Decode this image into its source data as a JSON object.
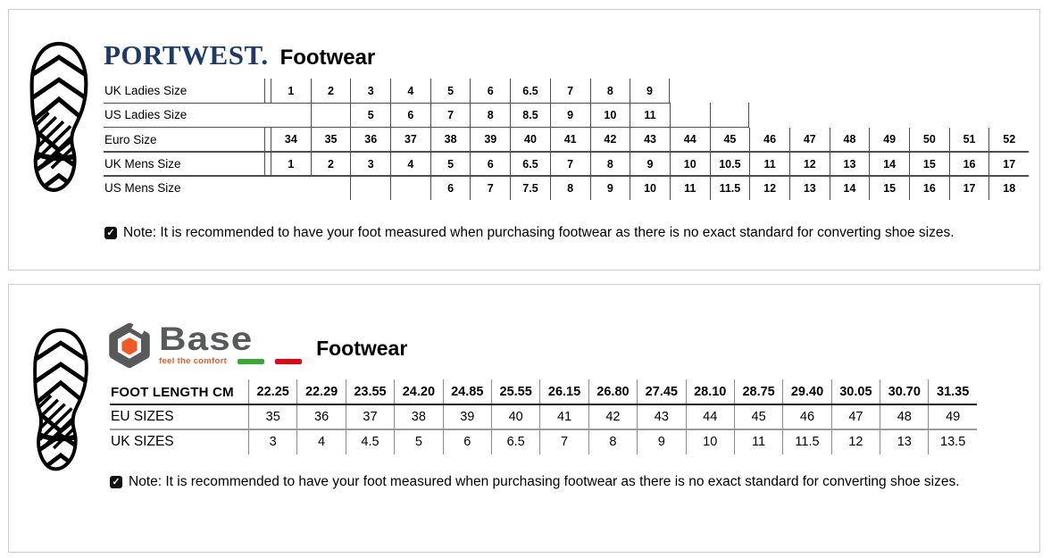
{
  "portwest": {
    "brand": "PORTWEST.",
    "title": "Footwear",
    "brand_color": "#1e3a68",
    "note_icon": "✓",
    "note": "Note: It is recommended to have your foot measured when purchasing footwear as there is no exact standard for converting shoe sizes.",
    "table": {
      "rows": [
        {
          "label": "UK Ladies Size",
          "values": [
            "1",
            "2",
            "3",
            "4",
            "5",
            "6",
            "6.5",
            "7",
            "8",
            "9",
            "",
            "",
            "",
            "",
            "",
            "",
            "",
            "",
            ""
          ]
        },
        {
          "label": "US Ladies Size",
          "values": [
            "",
            "",
            "5",
            "6",
            "7",
            "8",
            "8.5",
            "9",
            "10",
            "11",
            "",
            "",
            "",
            "",
            "",
            "",
            "",
            "",
            ""
          ]
        },
        {
          "label": "Euro Size",
          "values": [
            "34",
            "35",
            "36",
            "37",
            "38",
            "39",
            "40",
            "41",
            "42",
            "43",
            "44",
            "45",
            "46",
            "47",
            "48",
            "49",
            "50",
            "51",
            "52"
          ]
        },
        {
          "label": "UK Mens Size",
          "values": [
            "1",
            "2",
            "3",
            "4",
            "5",
            "6",
            "6.5",
            "7",
            "8",
            "9",
            "10",
            "10.5",
            "11",
            "12",
            "13",
            "14",
            "15",
            "16",
            "17"
          ]
        },
        {
          "label": "US Mens Size",
          "values": [
            "",
            "",
            "",
            "",
            "6",
            "7",
            "7.5",
            "8",
            "9",
            "10",
            "11",
            "11.5",
            "12",
            "13",
            "14",
            "15",
            "16",
            "17",
            "18"
          ]
        }
      ]
    }
  },
  "base": {
    "brand": "Base",
    "tagline": "feel the comfort",
    "title": "Footwear",
    "note_icon": "✓",
    "note": "Note: It is recommended to have your foot measured when purchasing footwear as there is no exact standard for converting shoe sizes.",
    "colors": {
      "gray": "#58595b",
      "orange": "#f15a24",
      "green": "#39a935",
      "red": "#e30613"
    },
    "table": {
      "rows": [
        {
          "label": "FOOT LENGTH CM",
          "values": [
            "22.25",
            "22.29",
            "23.55",
            "24.20",
            "24.85",
            "25.55",
            "26.15",
            "26.80",
            "27.45",
            "28.10",
            "28.75",
            "29.40",
            "30.05",
            "30.70",
            "31.35"
          ]
        },
        {
          "label": "EU SIZES",
          "values": [
            "35",
            "36",
            "37",
            "38",
            "39",
            "40",
            "41",
            "42",
            "43",
            "44",
            "45",
            "46",
            "47",
            "48",
            "49"
          ]
        },
        {
          "label": "UK SIZES",
          "values": [
            "3",
            "4",
            "4.5",
            "5",
            "6",
            "6.5",
            "7",
            "8",
            "9",
            "10",
            "11",
            "11.5",
            "12",
            "13",
            "13.5"
          ]
        }
      ]
    }
  }
}
